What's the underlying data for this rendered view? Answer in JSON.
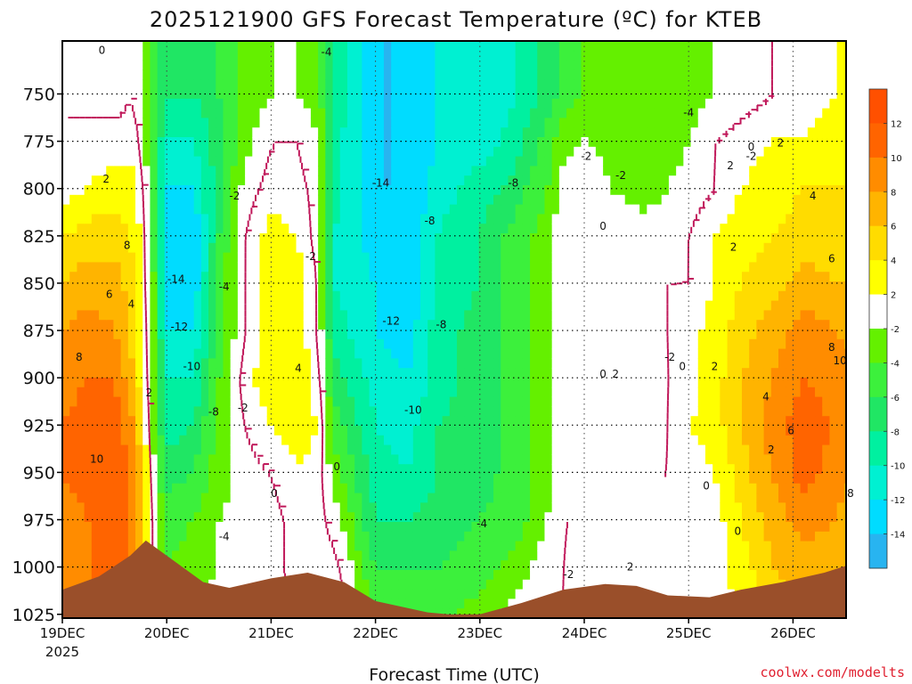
{
  "chart_data": {
    "type": "heatmap",
    "title": "2025121900 GFS Forecast Temperature (ºC) for KTEB",
    "xlabel": "Forecast Time (UTC)",
    "ylabel": "",
    "year_label": "2025",
    "credit": "coolwx.com/modelts",
    "x_ticks": [
      "19DEC",
      "20DEC",
      "21DEC",
      "22DEC",
      "23DEC",
      "24DEC",
      "25DEC",
      "26DEC"
    ],
    "x_range_days": [
      0,
      7.7
    ],
    "y_ticks": [
      "750",
      "775",
      "800",
      "825",
      "850",
      "875",
      "900",
      "925",
      "950",
      "975",
      "1000",
      "1025"
    ],
    "y_range_hpa": [
      722,
      1027
    ],
    "colorbar": {
      "levels": [
        -16,
        -14,
        -12,
        -10,
        -8,
        -6,
        -4,
        -2,
        2,
        4,
        6,
        8,
        10,
        12,
        14
      ],
      "labels": [
        "-14",
        "-12",
        "-10",
        "-8",
        "-6",
        "-4",
        "-2",
        "2",
        "4",
        "6",
        "8",
        "10",
        "12"
      ],
      "colors": [
        "#28b4f0",
        "#00dcff",
        "#00f0d2",
        "#00f0a0",
        "#20e664",
        "#3cf03c",
        "#64f000",
        "#ffffff",
        "#ffff00",
        "#ffdc00",
        "#ffb400",
        "#ff8c00",
        "#ff6400",
        "#ff5000"
      ]
    },
    "colors": {
      "terrain": "#9a4f2a",
      "zero_line": "#c0185a",
      "contour": "#000000"
    },
    "columns": [
      {
        "t": 0.0,
        "vals": [
          0,
          0,
          1,
          4,
          6,
          8,
          9,
          10,
          10,
          9,
          9,
          9
        ]
      },
      {
        "t": 0.25,
        "vals": [
          -1,
          1,
          2,
          5,
          7,
          9,
          10,
          11,
          11,
          10,
          10,
          10
        ]
      },
      {
        "t": 0.5,
        "vals": [
          -1,
          1,
          3,
          5,
          7,
          8,
          10,
          11,
          11,
          11,
          11,
          11
        ]
      },
      {
        "t": 0.65,
        "vals": [
          0,
          1,
          3,
          4,
          5,
          6,
          7,
          9,
          10,
          10,
          10,
          10
        ]
      },
      {
        "t": 0.75,
        "vals": [
          -1,
          0,
          1,
          2,
          2,
          3,
          3,
          5,
          6,
          7,
          7,
          7
        ]
      },
      {
        "t": 0.88,
        "vals": [
          -6,
          -6,
          -5,
          -5,
          -4,
          -4,
          -3,
          -3,
          -2,
          -1,
          -1,
          -1
        ]
      },
      {
        "t": 1.0,
        "vals": [
          -8,
          -10,
          -12,
          -13,
          -13,
          -12,
          -10,
          -9,
          -7,
          -5,
          -4,
          -3
        ]
      },
      {
        "t": 1.25,
        "vals": [
          -8,
          -10,
          -12,
          -14,
          -14,
          -12,
          -10,
          -8,
          -6,
          -4,
          -3,
          -2
        ]
      },
      {
        "t": 1.5,
        "vals": [
          -6,
          -7,
          -7,
          -6,
          -5,
          -5,
          -4,
          -3,
          -3,
          -2,
          -2,
          -1
        ]
      },
      {
        "t": 1.75,
        "vals": [
          -3,
          -3,
          -1,
          0,
          0,
          0,
          1,
          0,
          -1,
          -1,
          0,
          0
        ]
      },
      {
        "t": 2.0,
        "vals": [
          -2,
          0,
          1,
          3,
          3,
          3,
          4,
          2,
          0,
          -1,
          -1,
          -1
        ]
      },
      {
        "t": 2.25,
        "vals": [
          -2,
          0,
          1,
          2,
          3,
          3,
          4,
          3,
          2,
          1,
          1,
          0
        ]
      },
      {
        "t": 2.45,
        "vals": [
          -3,
          -2,
          -1,
          -1,
          0,
          0,
          1,
          2,
          1,
          1,
          1,
          1
        ]
      },
      {
        "t": 2.6,
        "vals": [
          -8,
          -9,
          -9,
          -10,
          -10,
          -9,
          -7,
          -5,
          -3,
          -1,
          1,
          2
        ]
      },
      {
        "t": 3.0,
        "vals": [
          -14,
          -14,
          -14,
          -13,
          -12,
          -12,
          -11,
          -10,
          -9,
          -8,
          -6,
          -4
        ]
      },
      {
        "t": 3.3,
        "vals": [
          -14,
          -14,
          -14,
          -14,
          -14,
          -13,
          -12,
          -11,
          -10,
          -8,
          -6,
          -5
        ]
      },
      {
        "t": 3.6,
        "vals": [
          -12,
          -12,
          -11,
          -10,
          -10,
          -9,
          -9,
          -8,
          -8,
          -7,
          -6,
          -5
        ]
      },
      {
        "t": 4.0,
        "vals": [
          -12,
          -11,
          -9,
          -8,
          -8,
          -7,
          -7,
          -7,
          -7,
          -6,
          -5,
          -3
        ]
      },
      {
        "t": 4.35,
        "vals": [
          -10,
          -9,
          -7,
          -5,
          -5,
          -5,
          -5,
          -5,
          -5,
          -5,
          -3,
          -1
        ]
      },
      {
        "t": 4.65,
        "vals": [
          -7,
          -5,
          -4,
          -3,
          -3,
          -3,
          -3,
          -3,
          -3,
          -2,
          -1,
          0
        ]
      },
      {
        "t": 4.8,
        "vals": [
          -5,
          -3,
          -1,
          0,
          0,
          0,
          0,
          0,
          0,
          0,
          0,
          0
        ]
      },
      {
        "t": 5.0,
        "vals": [
          -4,
          -2,
          0,
          0,
          0,
          0,
          0,
          0,
          0,
          0,
          1,
          1
        ]
      },
      {
        "t": 5.25,
        "vals": [
          -4,
          -3,
          -2,
          0,
          0,
          -1,
          -2,
          -2,
          0,
          0,
          1,
          1
        ]
      },
      {
        "t": 5.55,
        "vals": [
          -4,
          -4,
          -3,
          -1,
          0,
          -1,
          -2,
          -2,
          0,
          0,
          1,
          1
        ]
      },
      {
        "t": 5.8,
        "vals": [
          -3,
          -3,
          -2,
          -1,
          0,
          0,
          0,
          0,
          0,
          0,
          1,
          1
        ]
      },
      {
        "t": 6.0,
        "vals": [
          -3,
          -2,
          -1,
          0,
          0,
          1,
          1,
          2,
          1,
          0,
          0,
          0
        ]
      },
      {
        "t": 6.25,
        "vals": [
          -2,
          0,
          0,
          2,
          2,
          3,
          3,
          3,
          2,
          1,
          1,
          1
        ]
      },
      {
        "t": 6.5,
        "vals": [
          -1,
          1,
          2,
          3,
          4,
          5,
          6,
          6,
          5,
          4,
          3,
          2
        ]
      },
      {
        "t": 6.8,
        "vals": [
          0,
          2,
          3,
          4,
          5,
          7,
          8,
          9,
          8,
          7,
          6,
          4
        ]
      },
      {
        "t": 7.1,
        "vals": [
          1,
          2,
          4,
          5,
          7,
          9,
          10,
          11,
          11,
          9,
          7,
          6
        ]
      },
      {
        "t": 7.4,
        "vals": [
          2,
          3,
          4,
          5,
          6,
          8,
          9,
          10,
          9,
          8,
          7,
          6
        ]
      },
      {
        "t": 7.7,
        "vals": [
          3,
          3,
          4,
          5,
          6,
          7,
          8,
          8,
          7,
          6,
          5,
          4
        ]
      }
    ],
    "terrain_surface_hpa": [
      {
        "t": 0.0,
        "p": 1012
      },
      {
        "t": 0.35,
        "p": 1005
      },
      {
        "t": 0.65,
        "p": 994
      },
      {
        "t": 0.8,
        "p": 986
      },
      {
        "t": 1.0,
        "p": 994
      },
      {
        "t": 1.35,
        "p": 1008
      },
      {
        "t": 1.6,
        "p": 1011
      },
      {
        "t": 2.0,
        "p": 1006
      },
      {
        "t": 2.35,
        "p": 1003
      },
      {
        "t": 2.7,
        "p": 1008
      },
      {
        "t": 3.0,
        "p": 1018
      },
      {
        "t": 3.5,
        "p": 1024
      },
      {
        "t": 3.7,
        "p": 1025
      },
      {
        "t": 4.0,
        "p": 1025
      },
      {
        "t": 4.4,
        "p": 1019
      },
      {
        "t": 4.8,
        "p": 1012
      },
      {
        "t": 5.2,
        "p": 1009
      },
      {
        "t": 5.5,
        "p": 1010
      },
      {
        "t": 5.8,
        "p": 1015
      },
      {
        "t": 6.2,
        "p": 1016
      },
      {
        "t": 6.5,
        "p": 1012
      },
      {
        "t": 6.9,
        "p": 1008
      },
      {
        "t": 7.3,
        "p": 1003
      },
      {
        "t": 7.7,
        "p": 996
      }
    ],
    "contour_labels": [
      {
        "text": "0",
        "t": 0.38,
        "p": 727
      },
      {
        "text": "2",
        "t": 0.42,
        "p": 795
      },
      {
        "text": "8",
        "t": 0.62,
        "p": 830
      },
      {
        "text": "6",
        "t": 0.45,
        "p": 856
      },
      {
        "text": "4",
        "t": 0.66,
        "p": 861
      },
      {
        "text": "8",
        "t": 0.16,
        "p": 889
      },
      {
        "text": "2",
        "t": 0.83,
        "p": 908
      },
      {
        "text": "10",
        "t": 0.33,
        "p": 943
      },
      {
        "text": "-14",
        "t": 1.09,
        "p": 848
      },
      {
        "text": "-12",
        "t": 1.12,
        "p": 873
      },
      {
        "text": "-10",
        "t": 1.24,
        "p": 894
      },
      {
        "text": "-8",
        "t": 1.45,
        "p": 918
      },
      {
        "text": "-4",
        "t": 1.55,
        "p": 852
      },
      {
        "text": "-2",
        "t": 1.65,
        "p": 804
      },
      {
        "text": "-2",
        "t": 1.73,
        "p": 916
      },
      {
        "text": "-4",
        "t": 1.55,
        "p": 984
      },
      {
        "text": "4",
        "t": 2.26,
        "p": 895
      },
      {
        "text": "0",
        "t": 2.03,
        "p": 961
      },
      {
        "text": "-2",
        "t": 2.38,
        "p": 836
      },
      {
        "text": "0",
        "t": 2.63,
        "p": 947
      },
      {
        "text": "-4",
        "t": 2.53,
        "p": 728
      },
      {
        "text": "-14",
        "t": 3.05,
        "p": 797
      },
      {
        "text": "-12",
        "t": 3.15,
        "p": 870
      },
      {
        "text": "-10",
        "t": 3.36,
        "p": 917
      },
      {
        "text": "-8",
        "t": 3.52,
        "p": 817
      },
      {
        "text": "-8",
        "t": 3.63,
        "p": 872
      },
      {
        "text": "-8",
        "t": 4.32,
        "p": 797
      },
      {
        "text": "-4",
        "t": 4.02,
        "p": 977
      },
      {
        "text": "-2",
        "t": 5.02,
        "p": 783
      },
      {
        "text": "-2",
        "t": 5.35,
        "p": 793
      },
      {
        "text": "0",
        "t": 5.18,
        "p": 820
      },
      {
        "text": "-2",
        "t": 4.85,
        "p": 1004
      },
      {
        "text": "-4",
        "t": 6.0,
        "p": 760
      },
      {
        "text": "-2",
        "t": 5.82,
        "p": 889
      },
      {
        "text": "0",
        "t": 5.94,
        "p": 894
      },
      {
        "text": "0",
        "t": 5.18,
        "p": 898
      },
      {
        "text": "2",
        "t": 5.3,
        "p": 898
      },
      {
        "text": "2",
        "t": 5.44,
        "p": 1000
      },
      {
        "text": "2",
        "t": 6.25,
        "p": 894
      },
      {
        "text": "2",
        "t": 6.4,
        "p": 788
      },
      {
        "text": "0",
        "t": 6.6,
        "p": 778
      },
      {
        "text": "-2",
        "t": 6.6,
        "p": 783
      },
      {
        "text": "0",
        "t": 6.17,
        "p": 957
      },
      {
        "text": "0",
        "t": 6.47,
        "p": 981
      },
      {
        "text": "2",
        "t": 6.43,
        "p": 831
      },
      {
        "text": "2",
        "t": 6.88,
        "p": 776
      },
      {
        "text": "4",
        "t": 7.19,
        "p": 804
      },
      {
        "text": "6",
        "t": 7.37,
        "p": 837
      },
      {
        "text": "8",
        "t": 7.37,
        "p": 884
      },
      {
        "text": "10",
        "t": 7.45,
        "p": 891
      },
      {
        "text": "4",
        "t": 6.74,
        "p": 910
      },
      {
        "text": "6",
        "t": 6.98,
        "p": 928
      },
      {
        "text": "2",
        "t": 6.79,
        "p": 938
      },
      {
        "text": "8",
        "t": 7.55,
        "p": 961
      }
    ]
  }
}
